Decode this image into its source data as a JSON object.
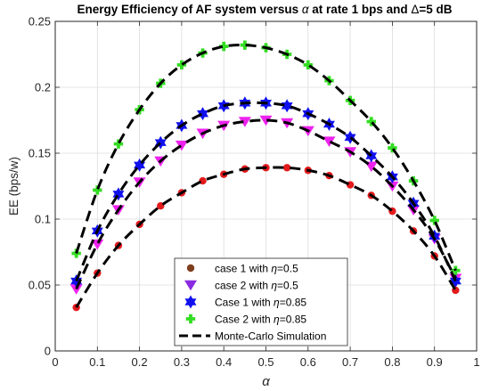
{
  "chart_data": {
    "type": "scatter",
    "title_parts": [
      "Energy Efficiency of AF system versus ",
      "α",
      " at rate 1 bps and ",
      "Δ",
      "=5 dB"
    ],
    "xlabel": "α",
    "ylabel": "EE (bps/w)",
    "xlim": [
      0,
      1
    ],
    "ylim": [
      0,
      0.25
    ],
    "x_ticks": [
      "0",
      "0.1",
      "0.2",
      "0.3",
      "0.4",
      "0.5",
      "0.6",
      "0.7",
      "0.8",
      "0.9",
      "1"
    ],
    "y_ticks": [
      "0",
      "0.05",
      "0.1",
      "0.15",
      "0.2",
      "0.25"
    ],
    "x_tick_values": [
      0,
      0.1,
      0.2,
      0.3,
      0.4,
      0.5,
      0.6,
      0.7,
      0.8,
      0.9,
      1
    ],
    "y_tick_values": [
      0,
      0.05,
      0.1,
      0.15,
      0.2,
      0.25
    ],
    "grid": true,
    "legend_position": "bottom-center",
    "x": [
      0.05,
      0.1,
      0.15,
      0.2,
      0.25,
      0.3,
      0.35,
      0.4,
      0.45,
      0.5,
      0.55,
      0.6,
      0.65,
      0.7,
      0.75,
      0.8,
      0.85,
      0.9,
      0.95
    ],
    "series": [
      {
        "name": "case 1 with η=0.5",
        "legend_text": "case 1 with ",
        "legend_symbol": "η",
        "legend_value": "=0.5",
        "marker": "circle",
        "color": "#e31a1c",
        "legend_color": "#7f3f1f",
        "values": [
          0.033,
          0.059,
          0.08,
          0.096,
          0.11,
          0.12,
          0.129,
          0.134,
          0.138,
          0.139,
          0.139,
          0.137,
          0.133,
          0.126,
          0.118,
          0.106,
          0.091,
          0.072,
          0.046
        ]
      },
      {
        "name": "case 2 with η=0.5",
        "legend_text": "case 2 with ",
        "legend_symbol": "η",
        "legend_value": "=0.5",
        "marker": "triangle-down",
        "color": "#ee22ee",
        "legend_color": "#8a2be2",
        "values": [
          0.047,
          0.081,
          0.107,
          0.128,
          0.144,
          0.156,
          0.165,
          0.171,
          0.174,
          0.175,
          0.173,
          0.167,
          0.159,
          0.151,
          0.14,
          0.125,
          0.107,
          0.085,
          0.055
        ]
      },
      {
        "name": "Case 1 with η=0.85",
        "legend_text": "Case 1 with ",
        "legend_symbol": "η",
        "legend_value": "=0.85",
        "marker": "hexagram",
        "color": "#1010ee",
        "legend_color": "#1010ee",
        "values": [
          0.053,
          0.091,
          0.119,
          0.141,
          0.158,
          0.171,
          0.18,
          0.186,
          0.188,
          0.188,
          0.186,
          0.18,
          0.172,
          0.162,
          0.148,
          0.132,
          0.112,
          0.087,
          0.053
        ]
      },
      {
        "name": "Case 2 with η=0.85",
        "legend_text": "Case 2 with ",
        "legend_symbol": "η",
        "legend_value": "=0.85",
        "marker": "plus",
        "color": "#33dd22",
        "legend_color": "#33dd22",
        "values": [
          0.074,
          0.122,
          0.157,
          0.183,
          0.203,
          0.217,
          0.226,
          0.231,
          0.232,
          0.23,
          0.225,
          0.217,
          0.205,
          0.19,
          0.174,
          0.154,
          0.129,
          0.099,
          0.061
        ]
      }
    ],
    "simulation": {
      "name": "Monte-Carlo Simulation",
      "style": "dashed",
      "color": "#000000"
    }
  }
}
